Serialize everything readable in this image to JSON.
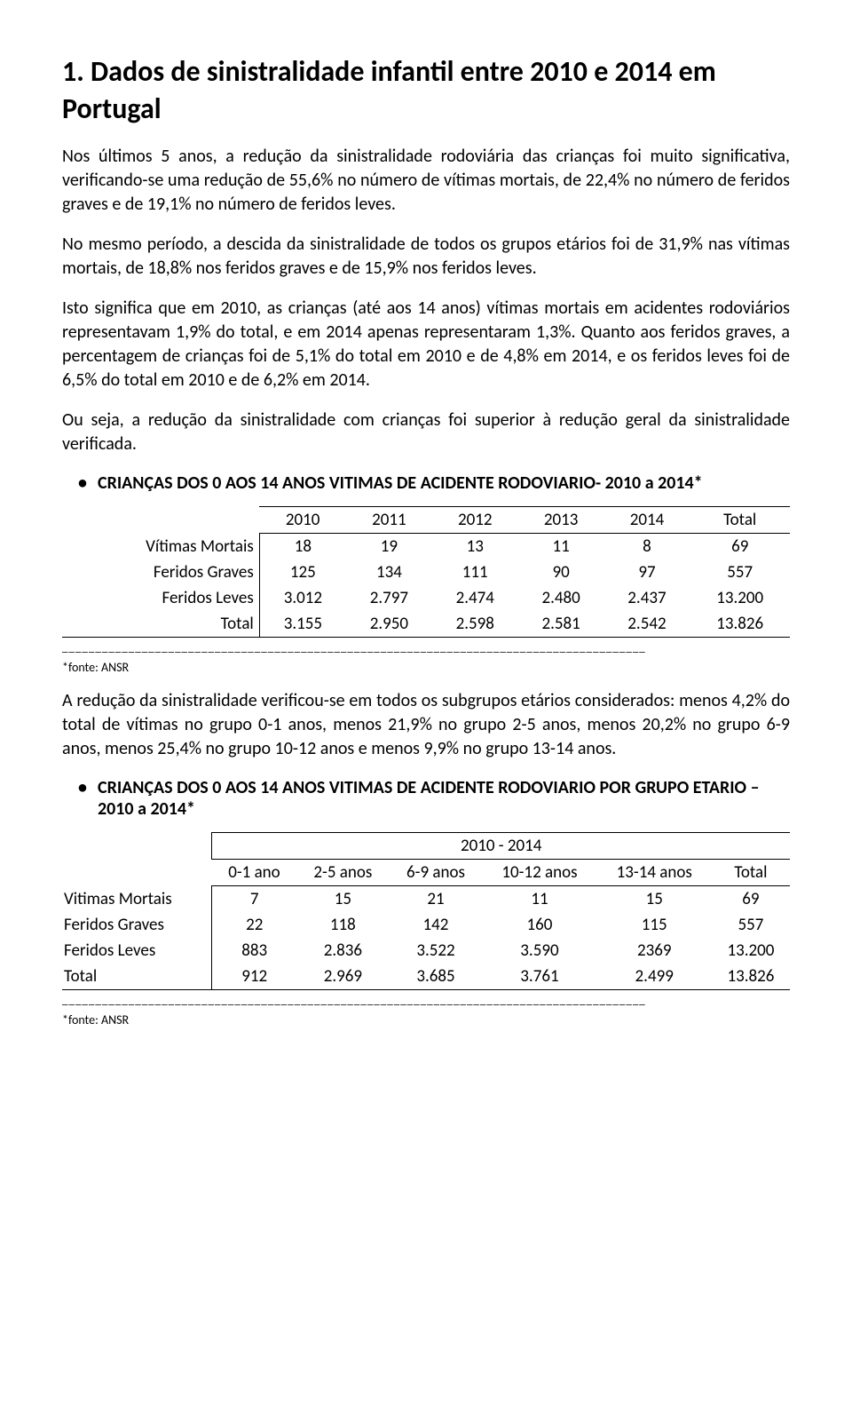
{
  "heading": "1. Dados de sinistralidade infantil entre 2010 e 2014 em Portugal",
  "para1": "Nos últimos 5 anos, a redução da sinistralidade rodoviária das crianças foi muito significativa, verificando-se uma redução de 55,6% no número de vítimas mortais, de 22,4% no número de feridos graves e de 19,1% no número de feridos leves.",
  "para2": "No mesmo período, a descida da sinistralidade de todos os grupos etários foi de 31,9% nas vítimas mortais, de 18,8% nos feridos graves e de 15,9% nos feridos leves.",
  "para3": "Isto significa que em 2010, as crianças (até aos 14 anos) vítimas mortais em acidentes rodoviários representavam 1,9% do total, e em 2014 apenas representaram 1,3%. Quanto aos feridos graves, a percentagem de crianças foi de 5,1% do total em 2010 e de 4,8% em 2014, e os feridos leves foi de 6,5% do total em 2010 e de 6,2% em 2014.",
  "para4": "Ou seja, a redução da sinistralidade com crianças foi superior à redução geral da sinistralidade verificada.",
  "table1": {
    "title": "CRIANÇAS DOS 0 AOS 14 ANOS VITIMAS DE ACIDENTE RODOVIARIO- 2010 a 2014*",
    "headers": [
      "2010",
      "2011",
      "2012",
      "2013",
      "2014",
      "Total"
    ],
    "rows": [
      {
        "label": "Vítimas Mortais",
        "cells": [
          "18",
          "19",
          "13",
          "11",
          "8",
          "69"
        ]
      },
      {
        "label": "Feridos Graves",
        "cells": [
          "125",
          "134",
          "111",
          "90",
          "97",
          "557"
        ]
      },
      {
        "label": "Feridos Leves",
        "cells": [
          "3.012",
          "2.797",
          "2.474",
          "2.480",
          "2.437",
          "13.200"
        ]
      },
      {
        "label": "Total",
        "cells": [
          "3.155",
          "2.950",
          "2.598",
          "2.581",
          "2.542",
          "13.826"
        ]
      }
    ]
  },
  "footnote1": "*fonte: ANSR",
  "para5": "A redução da sinistralidade verificou-se em todos os subgrupos etários considerados: menos 4,2% do total de vítimas no grupo 0-1 anos, menos 21,9% no grupo 2-5 anos, menos 20,2% no grupo 6-9 anos, menos 25,4% no grupo 10-12 anos e menos 9,9% no grupo 13-14 anos.",
  "table2": {
    "title": "CRIANÇAS DOS 0 AOS 14 ANOS VITIMAS DE ACIDENTE RODOVIARIO POR GRUPO ETARIO – 2010 a 2014*",
    "superheader": "2010 - 2014",
    "headers": [
      "0-1 ano",
      "2-5 anos",
      "6-9 anos",
      "10-12 anos",
      "13-14 anos",
      "Total"
    ],
    "rows": [
      {
        "label": "Vitimas Mortais",
        "cells": [
          "7",
          "15",
          "21",
          "11",
          "15",
          "69"
        ]
      },
      {
        "label": "Feridos Graves",
        "cells": [
          "22",
          "118",
          "142",
          "160",
          "115",
          "557"
        ]
      },
      {
        "label": "Feridos Leves",
        "cells": [
          "883",
          "2.836",
          "3.522",
          "3.590",
          "2369",
          "13.200"
        ]
      },
      {
        "label": "Total",
        "cells": [
          "912",
          "2.969",
          "3.685",
          "3.761",
          "2.499",
          "13.826"
        ]
      }
    ]
  },
  "footnote2": "*fonte: ANSR",
  "dashline": "________________________________________________________________________________________"
}
